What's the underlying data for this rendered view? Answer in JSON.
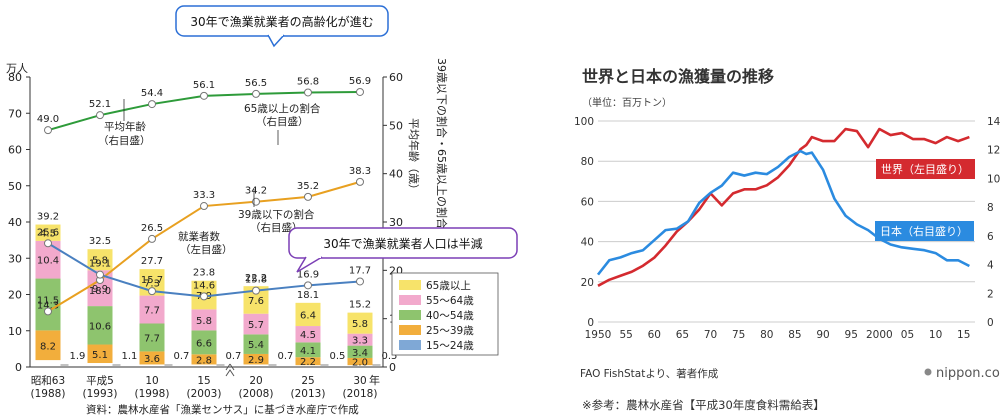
{
  "left_chart": {
    "left_unit": "万人",
    "left_ticks": [
      "0",
      "10",
      "20",
      "30",
      "40",
      "50",
      "60",
      "70",
      "80"
    ],
    "right_ticks": [
      "0",
      "10",
      "20",
      "30",
      "40",
      "50",
      "60"
    ],
    "right_title": "39歳以下の割合・65歳以上の割合",
    "right_title2": "平均年齢（歳）",
    "callout_top": "30年で漁業就業者の高齢化が進む",
    "callout_bottom": "30年で漁業就業者人口は半減",
    "label_avg_age": "平均年齢",
    "label_avg_age2": "（右目盛）",
    "label_65": "65歳以上の割合",
    "label_65b": "（右目盛）",
    "label_39": "39歳以下の割合",
    "label_39b": "（右目盛）",
    "label_workers": "就業者数",
    "label_workers2": "（左目盛）",
    "year_unit": "年",
    "source": "資料：農林水産省「漁業センサス」に基づき水産庁で作成",
    "legend": [
      "65歳以上",
      "55～64歳",
      "40～54歳",
      "25～39歳",
      "15～24歳"
    ],
    "colors": {
      "g65": "#f7e36a",
      "g55": "#f2a9cc",
      "g40": "#8ec46e",
      "g25": "#f2ae3c",
      "g15": "#7fa8d6",
      "avg": "#2e9b3a",
      "r65": "#e8a020",
      "r39": "#4a80c0"
    }
  },
  "right_chart": {
    "title": "世界と日本の漁獲量の推移",
    "unit": "（単位：百万トン）",
    "left_ticks": [
      "0",
      "20",
      "40",
      "60",
      "80",
      "100"
    ],
    "right_ticks": [
      "0",
      "2",
      "4",
      "6",
      "8",
      "10",
      "12",
      "14"
    ],
    "x_ticks": [
      "1950",
      "55",
      "60",
      "65",
      "70",
      "75",
      "80",
      "85",
      "90",
      "95",
      "2000",
      "05",
      "10",
      "15"
    ],
    "world_label": "世界（左目盛り）",
    "japan_label": "日本（右目盛り）",
    "source": "FAO FishStatより、著者作成",
    "logo": "nippon.com",
    "note": "※参考：農林水産省【平成30年度食料需給表】",
    "colors": {
      "world": "#d42a2f",
      "japan": "#2b8be0",
      "grid": "#cccccc"
    }
  },
  "chart_data": [
    {
      "type": "bar",
      "categories": [
        "昭和63\n(1988)",
        "平成5\n(1993)",
        "10\n(1998)",
        "15\n(2003)",
        "20\n(2008)",
        "25\n(2013)",
        "30\n(2018)"
      ],
      "totals": [
        39.2,
        32.5,
        27.7,
        23.8,
        22.2,
        18.1,
        15.2
      ],
      "series": [
        {
          "name": "15～24歳",
          "values": [
            1.9,
            1.1,
            0.7,
            0.7,
            0.7,
            0.5,
            0.5
          ]
        },
        {
          "name": "25～39歳",
          "values": [
            8.2,
            5.1,
            3.6,
            2.8,
            2.9,
            2.2,
            2.0
          ]
        },
        {
          "name": "40～54歳",
          "values": [
            14.3,
            10.6,
            7.7,
            6.6,
            5.4,
            4.1,
            3.4
          ]
        },
        {
          "name": "55～64歳",
          "values": [
            10.4,
            9.9,
            7.7,
            5.8,
            5.7,
            4.5,
            3.3
          ]
        },
        {
          "name": "65歳以上",
          "values": [
            4.5,
            5.8,
            7.3,
            7.9,
            7.6,
            6.4,
            5.8
          ]
        }
      ],
      "lines": [
        {
          "name": "平均年齢",
          "values": [
            49.0,
            52.1,
            54.4,
            56.1,
            56.5,
            56.8,
            56.9
          ]
        },
        {
          "name": "65歳以上の割合",
          "values": [
            11.5,
            18.0,
            26.5,
            33.3,
            34.2,
            35.2,
            38.3
          ]
        },
        {
          "name": "39歳以下の割合",
          "values": [
            25.6,
            19.1,
            15.7,
            14.6,
            15.8,
            16.9,
            17.7
          ]
        }
      ],
      "ylim_left": [
        0,
        80
      ],
      "ylim_right": [
        0,
        60
      ]
    },
    {
      "type": "line",
      "title": "世界と日本の漁獲量の推移",
      "x": [
        1950,
        1952,
        1954,
        1956,
        1958,
        1960,
        1962,
        1964,
        1966,
        1968,
        1970,
        1972,
        1974,
        1976,
        1978,
        1980,
        1982,
        1984,
        1986,
        1987,
        1988,
        1990,
        1992,
        1994,
        1996,
        1998,
        2000,
        2002,
        2004,
        2006,
        2008,
        2010,
        2012,
        2014,
        2016
      ],
      "series": [
        {
          "name": "世界（左目盛り）",
          "values": [
            18,
            21,
            23,
            25,
            28,
            32,
            38,
            45,
            50,
            56,
            64,
            58,
            64,
            66,
            66,
            68,
            72,
            78,
            86,
            88,
            92,
            90,
            90,
            96,
            95,
            87,
            96,
            93,
            94,
            91,
            91,
            89,
            92,
            90,
            92
          ]
        },
        {
          "name": "日本（右目盛り）",
          "values": [
            3.3,
            4.3,
            4.5,
            4.8,
            5.0,
            5.7,
            6.4,
            6.5,
            7.0,
            8.3,
            9.0,
            9.5,
            10.4,
            10.2,
            10.4,
            10.3,
            10.8,
            11.5,
            11.9,
            11.7,
            11.8,
            10.6,
            8.6,
            7.4,
            6.8,
            6.4,
            5.8,
            5.4,
            5.2,
            5.1,
            5.0,
            4.8,
            4.3,
            4.3,
            3.9
          ]
        }
      ],
      "ylim_left": [
        0,
        100
      ],
      "ylim_right": [
        0,
        14
      ],
      "xlim": [
        1950,
        2017
      ]
    }
  ]
}
